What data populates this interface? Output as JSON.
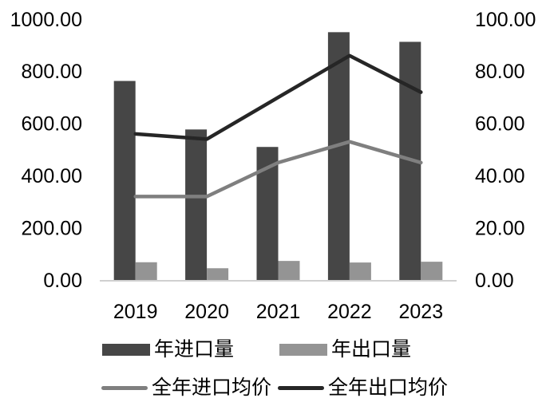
{
  "chart_data": {
    "type": "combo-bar-line",
    "categories": [
      "2019",
      "2020",
      "2021",
      "2022",
      "2023"
    ],
    "series": [
      {
        "key": "import-volume",
        "name": "年进口量",
        "type": "bar",
        "axis": "left",
        "color": "#464646",
        "values": [
          763,
          577,
          510,
          950,
          913
        ]
      },
      {
        "key": "export-volume",
        "name": "年出口量",
        "type": "bar",
        "axis": "left",
        "color": "#949494",
        "values": [
          68,
          45,
          73,
          67,
          70
        ]
      },
      {
        "key": "import-avg-price",
        "name": "全年进口均价",
        "type": "line",
        "axis": "right",
        "color": "#7f7f7f",
        "values": [
          32,
          32,
          45,
          53,
          45
        ]
      },
      {
        "key": "export-avg-price",
        "name": "全年出口均价",
        "type": "line",
        "axis": "right",
        "color": "#262626",
        "values": [
          56,
          54,
          70,
          86,
          72
        ]
      }
    ],
    "left_axis": {
      "min": 0,
      "max": 1000,
      "tick_values": [
        0,
        200,
        400,
        600,
        800,
        1000
      ],
      "tick_labels": [
        "0.00",
        "200.00",
        "400.00",
        "600.00",
        "800.00",
        "1000.00"
      ]
    },
    "right_axis": {
      "min": 0,
      "max": 100,
      "tick_values": [
        0,
        20,
        40,
        60,
        80,
        100
      ],
      "tick_labels": [
        "0.00",
        "20.00",
        "40.00",
        "60.00",
        "80.00",
        "100.00"
      ]
    },
    "grid": false,
    "legend_position": "bottom",
    "baseline_color": "#d0d0d0",
    "text_color": "#000000"
  }
}
